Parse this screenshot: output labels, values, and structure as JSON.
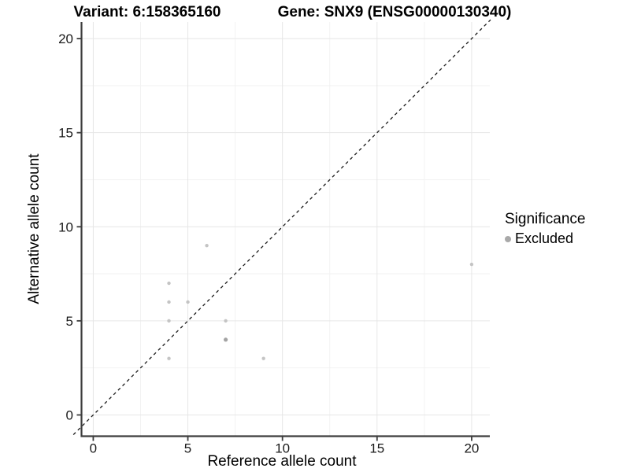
{
  "chart_data": {
    "type": "scatter",
    "title_left": "Variant: 6:158365160",
    "title_right": "Gene: SNX9 (ENSG00000130340)",
    "xlabel": "Reference allele count",
    "ylabel": "Alternative allele count",
    "xlim": [
      -0.6,
      20.96
    ],
    "ylim": [
      -1.13,
      20.88
    ],
    "xticks": [
      0,
      5,
      10,
      15,
      20
    ],
    "yticks": [
      0,
      5,
      10,
      15,
      20
    ],
    "xticks_minor": [
      2.5,
      7.5,
      12.5,
      17.5
    ],
    "yticks_minor": [
      2.5,
      7.5,
      12.5,
      17.5
    ],
    "grid": "major+minor",
    "identity_line": {
      "slope": 1,
      "intercept": 0,
      "style": "dashed"
    },
    "series": [
      {
        "name": "Excluded",
        "marker": "circle",
        "color": "#c4c4c4",
        "points": [
          {
            "x": 4,
            "y": 3
          },
          {
            "x": 4,
            "y": 5
          },
          {
            "x": 4,
            "y": 6
          },
          {
            "x": 4,
            "y": 7
          },
          {
            "x": 5,
            "y": 6
          },
          {
            "x": 6,
            "y": 9
          },
          {
            "x": 7,
            "y": 4,
            "overlap": true
          },
          {
            "x": 7,
            "y": 5
          },
          {
            "x": 9,
            "y": 3
          },
          {
            "x": 20,
            "y": 8
          }
        ]
      }
    ],
    "legend": {
      "title": "Significance",
      "position": "right",
      "entries": [
        {
          "label": "Excluded",
          "color": "#a9a9a9"
        }
      ]
    }
  },
  "colors": {
    "background": "#ffffff",
    "point": "#c4c4c4",
    "point_overlap": "#a3a3a3",
    "grid_major": "#e6e6e6",
    "grid_minor": "#f2f2f2",
    "axis_line": "#3d3d3d",
    "tick_mark": "#3d3d3d",
    "tick_text": "#1a1a1a",
    "identity_line": "#1a1a1a"
  }
}
